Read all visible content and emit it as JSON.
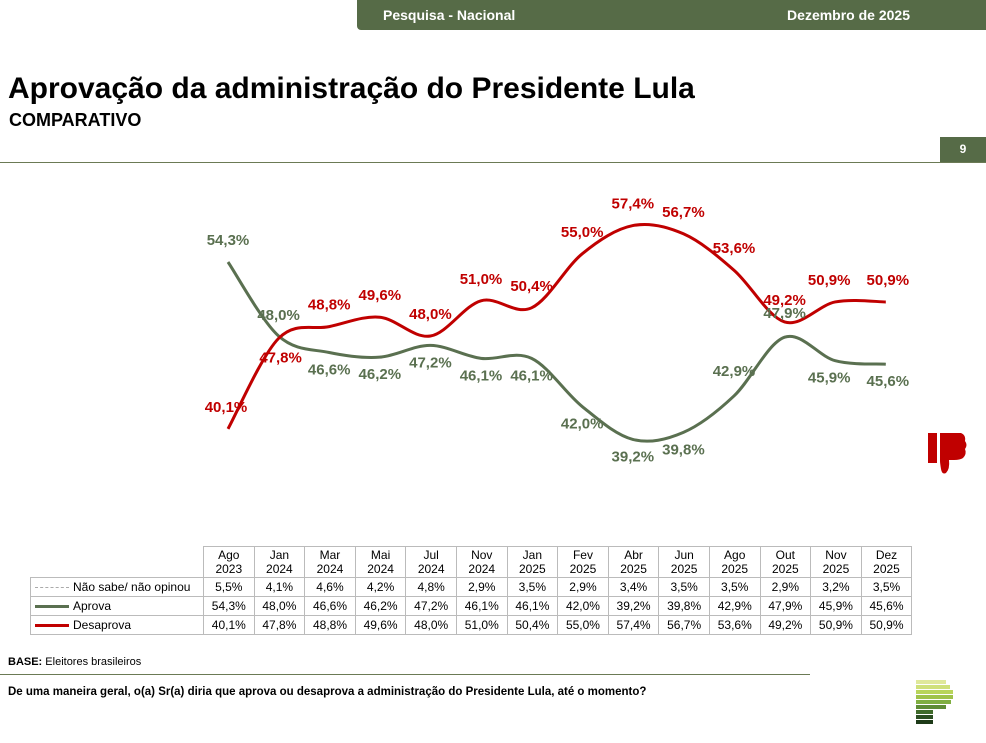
{
  "header": {
    "left": "Pesquisa - Nacional",
    "right": "Dezembro de 2025",
    "page": "9"
  },
  "title": "Aprovação da administração do Presidente Lula",
  "subtitle": "COMPARATIVO",
  "colors": {
    "aprova": "#5a7050",
    "desaprova": "#c00000",
    "brand": "#566b47"
  },
  "chart_data": {
    "type": "line",
    "title": "Aprovação da administração do Presidente Lula",
    "categories": [
      [
        "Ago",
        "2023"
      ],
      [
        "Jan",
        "2024"
      ],
      [
        "Mar",
        "2024"
      ],
      [
        "Mai",
        "2024"
      ],
      [
        "Jul",
        "2024"
      ],
      [
        "Nov",
        "2024"
      ],
      [
        "Jan",
        "2025"
      ],
      [
        "Fev",
        "2025"
      ],
      [
        "Abr",
        "2025"
      ],
      [
        "Jun",
        "2025"
      ],
      [
        "Ago",
        "2025"
      ],
      [
        "Out",
        "2025"
      ],
      [
        "Nov",
        "2025"
      ],
      [
        "Dez",
        "2025"
      ]
    ],
    "series": [
      {
        "name": "Não sabe/ não opinou",
        "values": [
          "5,5%",
          "4,1%",
          "4,6%",
          "4,2%",
          "4,8%",
          "2,9%",
          "3,5%",
          "2,9%",
          "3,4%",
          "3,5%",
          "3,5%",
          "2,9%",
          "3,2%",
          "3,5%"
        ],
        "plotted": false
      },
      {
        "name": "Aprova",
        "values": [
          "54,3%",
          "48,0%",
          "46,6%",
          "46,2%",
          "47,2%",
          "46,1%",
          "46,1%",
          "42,0%",
          "39,2%",
          "39,8%",
          "42,9%",
          "47,9%",
          "45,9%",
          "45,6%"
        ]
      },
      {
        "name": "Desaprova",
        "values": [
          "40,1%",
          "47,8%",
          "48,8%",
          "49,6%",
          "48,0%",
          "51,0%",
          "50,4%",
          "55,0%",
          "57,4%",
          "56,7%",
          "53,6%",
          "49,2%",
          "50,9%",
          "50,9%"
        ]
      }
    ]
  },
  "footer": {
    "base_label": "BASE:",
    "base_text": " Eleitores brasileiros",
    "question": "De uma maneira geral, o(a) Sr(a) diria que aprova ou desaprova a administração do Presidente Lula, até o momento?"
  }
}
